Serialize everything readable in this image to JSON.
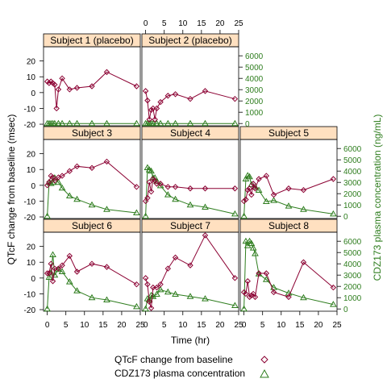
{
  "chart_data": {
    "type": "line",
    "title": "",
    "xlabel": "Time (hr)",
    "ylabel_left": "QTcF change from baseline (msec)",
    "ylabel_right": "CDZ173 plasma concentration (ng/mL)",
    "x_ticks": [
      0,
      5,
      10,
      15,
      20,
      25
    ],
    "y_left_ticks": [
      -20,
      -10,
      0,
      10,
      20
    ],
    "y_right_ticks": [
      0,
      1000,
      2000,
      3000,
      4000,
      5000,
      6000
    ],
    "xlim": [
      -1,
      25
    ],
    "ylim_left": [
      -21,
      29
    ],
    "ylim_right": [
      -200,
      6800
    ],
    "colors": {
      "qtcf": "#8b0032",
      "conc": "#2e7d1e",
      "strip": "#ffe0c0",
      "right_axis": "#2e7d1e"
    },
    "legend": {
      "placement": "bottom",
      "items": [
        {
          "label": "QTcF change from baseline",
          "marker": "diamond"
        },
        {
          "label": "CDZ173 plasma concentration",
          "marker": "triangle"
        }
      ]
    },
    "panels": [
      {
        "title": "Subject 1 (placebo)",
        "qtcf": [
          [
            0,
            7
          ],
          [
            0.5,
            6
          ],
          [
            1,
            7
          ],
          [
            1.5,
            6
          ],
          [
            2,
            5
          ],
          [
            2.5,
            -10
          ],
          [
            3,
            2
          ],
          [
            4,
            9
          ],
          [
            6,
            2
          ],
          [
            8,
            3
          ],
          [
            12,
            4
          ],
          [
            16,
            13
          ],
          [
            24,
            4
          ]
        ],
        "conc": [
          [
            0,
            0
          ],
          [
            0.5,
            0
          ],
          [
            1,
            0
          ],
          [
            1.5,
            0
          ],
          [
            2,
            0
          ],
          [
            3,
            0
          ],
          [
            4,
            0
          ],
          [
            6,
            0
          ],
          [
            8,
            0
          ],
          [
            12,
            0
          ],
          [
            16,
            0
          ],
          [
            24,
            0
          ]
        ]
      },
      {
        "title": "Subject 2 (placebo)",
        "qtcf": [
          [
            0,
            1
          ],
          [
            0.5,
            -5
          ],
          [
            1,
            -17
          ],
          [
            1.5,
            -11
          ],
          [
            2,
            -10
          ],
          [
            2.5,
            -17
          ],
          [
            3,
            -10
          ],
          [
            4,
            -6
          ],
          [
            6,
            -2
          ],
          [
            8,
            -1
          ],
          [
            12,
            -4
          ],
          [
            16,
            1
          ],
          [
            24,
            -4
          ]
        ],
        "conc": [
          [
            0,
            0
          ],
          [
            0.5,
            0
          ],
          [
            1,
            0
          ],
          [
            1.5,
            0
          ],
          [
            2,
            0
          ],
          [
            3,
            0
          ],
          [
            4,
            0
          ],
          [
            6,
            0
          ],
          [
            8,
            0
          ],
          [
            12,
            0
          ],
          [
            16,
            0
          ],
          [
            24,
            0
          ]
        ]
      },
      {
        "title": "Subject 3",
        "qtcf": [
          [
            0,
            0
          ],
          [
            0.5,
            2
          ],
          [
            1,
            6
          ],
          [
            1.5,
            5
          ],
          [
            2,
            3
          ],
          [
            3,
            5
          ],
          [
            4,
            6
          ],
          [
            6,
            9
          ],
          [
            8,
            12
          ],
          [
            12,
            11
          ],
          [
            16,
            15
          ],
          [
            24,
            -1
          ]
        ],
        "conc": [
          [
            0,
            0
          ],
          [
            0.5,
            3000
          ],
          [
            1,
            2900
          ],
          [
            1.5,
            3000
          ],
          [
            2,
            3400
          ],
          [
            3,
            3000
          ],
          [
            4,
            2500
          ],
          [
            6,
            1800
          ],
          [
            8,
            1500
          ],
          [
            12,
            1000
          ],
          [
            16,
            600
          ],
          [
            24,
            300
          ]
        ]
      },
      {
        "title": "Subject 4",
        "qtcf": [
          [
            0,
            -10
          ],
          [
            0.5,
            -8
          ],
          [
            1,
            2
          ],
          [
            1.5,
            -4
          ],
          [
            2,
            4
          ],
          [
            2.5,
            3
          ],
          [
            3,
            1
          ],
          [
            4,
            1
          ],
          [
            6,
            -1
          ],
          [
            8,
            -1
          ],
          [
            12,
            -2
          ],
          [
            16,
            -2
          ],
          [
            24,
            -2
          ]
        ],
        "conc": [
          [
            0,
            0
          ],
          [
            0.5,
            4300
          ],
          [
            1,
            4100
          ],
          [
            1.5,
            4000
          ],
          [
            2,
            3400
          ],
          [
            2.5,
            3400
          ],
          [
            3,
            3100
          ],
          [
            4,
            2700
          ],
          [
            6,
            1900
          ],
          [
            8,
            1500
          ],
          [
            12,
            1000
          ],
          [
            16,
            800
          ],
          [
            24,
            200
          ]
        ]
      },
      {
        "title": "Subject 5",
        "qtcf": [
          [
            0,
            -10
          ],
          [
            0.5,
            -9
          ],
          [
            1,
            -3
          ],
          [
            1.5,
            -2
          ],
          [
            2,
            -6
          ],
          [
            2.5,
            1
          ],
          [
            3,
            -2
          ],
          [
            4,
            4
          ],
          [
            6,
            6
          ],
          [
            8,
            -6
          ],
          [
            12,
            -2
          ],
          [
            16,
            -3
          ],
          [
            24,
            4
          ]
        ],
        "conc": [
          [
            0,
            0
          ],
          [
            0.5,
            3300
          ],
          [
            1,
            3600
          ],
          [
            1.5,
            3500
          ],
          [
            2,
            2800
          ],
          [
            3,
            2600
          ],
          [
            4,
            2300
          ],
          [
            6,
            1300
          ],
          [
            8,
            1400
          ],
          [
            12,
            900
          ],
          [
            16,
            600
          ],
          [
            24,
            200
          ]
        ]
      },
      {
        "title": "Subject 6",
        "qtcf": [
          [
            0,
            3
          ],
          [
            0.5,
            3
          ],
          [
            1,
            9
          ],
          [
            1.5,
            -2
          ],
          [
            2,
            6
          ],
          [
            3,
            6
          ],
          [
            4,
            8
          ],
          [
            6,
            14
          ],
          [
            8,
            4
          ],
          [
            12,
            9
          ],
          [
            16,
            7
          ],
          [
            24,
            -4
          ]
        ],
        "conc": [
          [
            0,
            0
          ],
          [
            0.5,
            2800
          ],
          [
            1,
            3200
          ],
          [
            1.5,
            4800
          ],
          [
            2,
            3000
          ],
          [
            3,
            3500
          ],
          [
            4,
            3300
          ],
          [
            6,
            2400
          ],
          [
            8,
            1600
          ],
          [
            12,
            1000
          ],
          [
            16,
            800
          ],
          [
            24,
            200
          ]
        ]
      },
      {
        "title": "Subject 7",
        "qtcf": [
          [
            0,
            0
          ],
          [
            0.5,
            -4
          ],
          [
            1,
            -15
          ],
          [
            1.5,
            -19
          ],
          [
            2,
            -6
          ],
          [
            3,
            -6
          ],
          [
            4,
            -4
          ],
          [
            6,
            6
          ],
          [
            8,
            13
          ],
          [
            12,
            8
          ],
          [
            16,
            27
          ],
          [
            24,
            0
          ]
        ],
        "conc": [
          [
            0,
            0
          ],
          [
            0.5,
            900
          ],
          [
            1,
            800
          ],
          [
            1.5,
            1200
          ],
          [
            2,
            1100
          ],
          [
            3,
            1300
          ],
          [
            4,
            1700
          ],
          [
            6,
            1500
          ],
          [
            8,
            1300
          ],
          [
            12,
            1100
          ],
          [
            16,
            900
          ],
          [
            24,
            300
          ]
        ]
      },
      {
        "title": "Subject 8",
        "qtcf": [
          [
            0,
            -9
          ],
          [
            0.5,
            -10
          ],
          [
            1,
            -2
          ],
          [
            1.5,
            -12
          ],
          [
            2,
            -11
          ],
          [
            2.5,
            -10
          ],
          [
            3,
            -12
          ],
          [
            4,
            3
          ],
          [
            6,
            3
          ],
          [
            8,
            -9
          ],
          [
            12,
            -12
          ],
          [
            16,
            10
          ],
          [
            24,
            -6
          ]
        ],
        "conc": [
          [
            0,
            0
          ],
          [
            0.5,
            6000
          ],
          [
            1,
            5600
          ],
          [
            1.5,
            6000
          ],
          [
            2,
            5800
          ],
          [
            2.5,
            5400
          ],
          [
            3,
            4900
          ],
          [
            4,
            3100
          ],
          [
            6,
            2600
          ],
          [
            8,
            1900
          ],
          [
            12,
            1400
          ],
          [
            16,
            1000
          ],
          [
            24,
            400
          ]
        ]
      }
    ]
  }
}
